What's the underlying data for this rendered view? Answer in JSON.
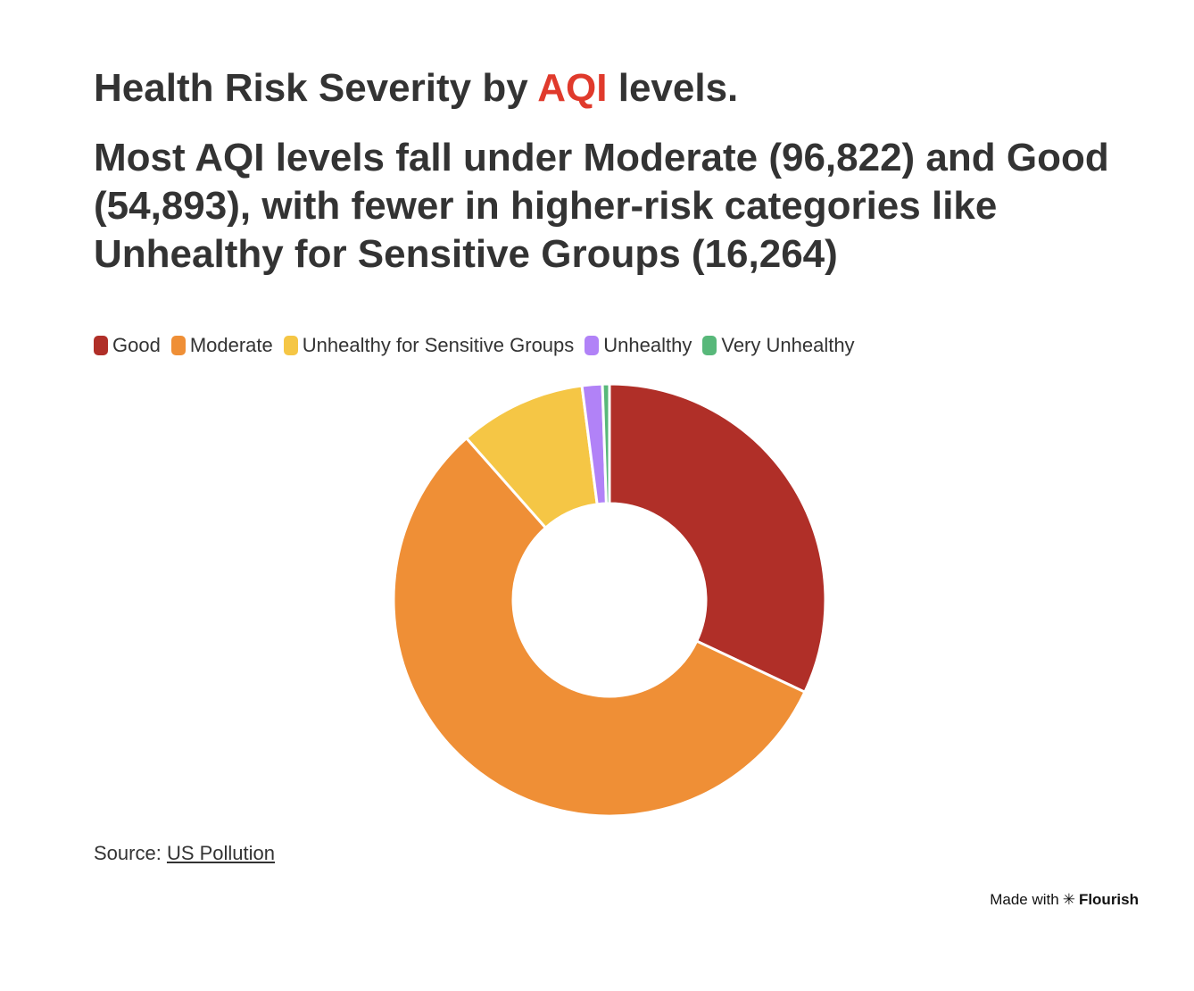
{
  "header": {
    "title_before": "Health Risk Severity by ",
    "title_accent": "AQI",
    "title_after": " levels.",
    "title_accent_color": "#e03a2c",
    "subtitle": "Most AQI levels fall under Moderate (96,822) and Good (54,893), with fewer in higher-risk categories like Unhealthy for Sensitive Groups (16,264)"
  },
  "chart_data": {
    "type": "pie",
    "donut": true,
    "categories": [
      "Good",
      "Moderate",
      "Unhealthy for Sensitive Groups",
      "Unhealthy",
      "Very Unhealthy"
    ],
    "values": [
      54893,
      96822,
      16264,
      2600,
      900
    ],
    "colors": [
      "#b02f28",
      "#ef8f36",
      "#f5c645",
      "#b182f7",
      "#58b87a"
    ],
    "legend_position": "top-left"
  },
  "footer": {
    "source_label": "Source:",
    "source_link": "US Pollution",
    "made_with": "Made with",
    "brand_star": "✳",
    "brand": "Flourish"
  }
}
